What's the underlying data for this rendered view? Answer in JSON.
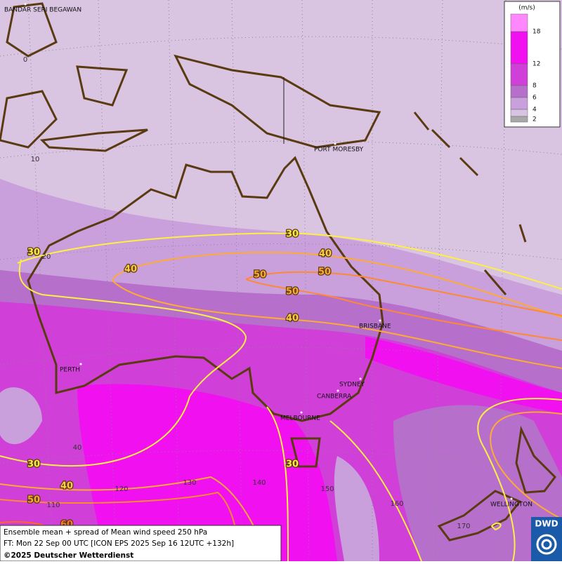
{
  "map": {
    "cities": [
      "BANDAR SERI BEGAWAN",
      "PORT MORESBY",
      "BRISBANE",
      "PERTH",
      "SYDNEY",
      "CANBERRA",
      "MELBOURNE",
      "WELLINGTON"
    ],
    "grid_labels": [
      0,
      10,
      20,
      40,
      110,
      120,
      130,
      140,
      150,
      160,
      170
    ],
    "contour_labels": [
      30,
      30,
      40,
      40,
      50,
      50,
      50,
      40,
      30,
      40,
      50,
      60,
      30
    ],
    "legend": {
      "unit": "(m/s)",
      "levels": [
        18,
        12,
        8,
        6,
        4,
        2
      ],
      "colors": [
        "#ff88ff",
        "#f010f0",
        "#d040d8",
        "#b670cc",
        "#c9a0dc",
        "#d8c4e2",
        "#a8a8a8"
      ]
    },
    "footer": {
      "line1": "Ensemble mean + spread of Mean wind speed 250 hPa",
      "line2": "FT: Mon 22 Sep 00 UTC [ICON EPS 2025 Sep 16 12UTC +132h]",
      "line3": "©2025 Deutscher Wetterdienst"
    },
    "logo": "DWD"
  }
}
